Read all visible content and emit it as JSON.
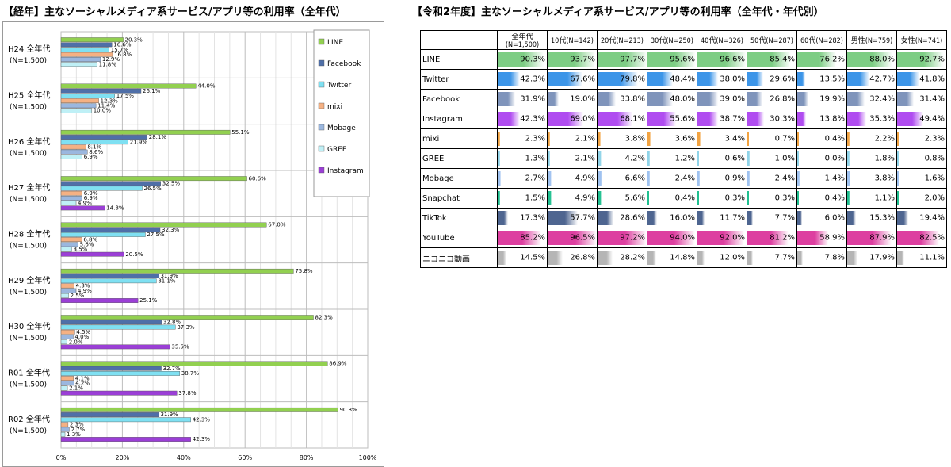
{
  "left_title": "【経年】主なソーシャルメディア系サービス/アプリ等の利用率（全年代）",
  "right_title": "【令和2年度】主なソーシャルメディア系サービス/アプリ等の利用率（全年代・年代別）",
  "chart_data": [
    {
      "type": "bar",
      "orientation": "horizontal",
      "title": "【経年】主なソーシャルメディア系サービス/アプリ等の利用率（全年代）",
      "categories": [
        {
          "line1": "H24 全年代",
          "line2": "(N=1,500)"
        },
        {
          "line1": "H25 全年代",
          "line2": "(N=1,500)"
        },
        {
          "line1": "H26 全年代",
          "line2": "(N=1,500)"
        },
        {
          "line1": "H27 全年代",
          "line2": "(N=1,500)"
        },
        {
          "line1": "H28 全年代",
          "line2": "(N=1,500)"
        },
        {
          "line1": "H29 全年代",
          "line2": "(N=1,500)"
        },
        {
          "line1": "H30 全年代",
          "line2": "(N=1,500)"
        },
        {
          "line1": "R01 全年代",
          "line2": "(N=1,500)"
        },
        {
          "line1": "R02 全年代",
          "line2": "(N=1,500)"
        }
      ],
      "series": [
        {
          "name": "LINE",
          "color": "#92d050",
          "values": [
            20.3,
            44.0,
            55.1,
            60.6,
            67.0,
            75.8,
            82.3,
            86.9,
            90.3
          ]
        },
        {
          "name": "Facebook",
          "color": "#4f6fa8",
          "values": [
            16.6,
            26.1,
            28.1,
            32.5,
            32.3,
            31.9,
            32.8,
            32.7,
            31.9
          ]
        },
        {
          "name": "Twitter",
          "color": "#7fe0f2",
          "values": [
            15.7,
            17.5,
            21.9,
            26.5,
            27.5,
            31.1,
            37.3,
            38.7,
            42.3
          ]
        },
        {
          "name": "mixi",
          "color": "#f5b183",
          "values": [
            16.8,
            12.3,
            8.1,
            6.9,
            6.8,
            4.3,
            4.5,
            4.1,
            2.3
          ]
        },
        {
          "name": "Mobage",
          "color": "#9bb7df",
          "values": [
            12.9,
            11.4,
            8.6,
            6.9,
            5.6,
            4.9,
            4.0,
            4.2,
            2.7
          ]
        },
        {
          "name": "GREE",
          "color": "#bff0f6",
          "values": [
            11.8,
            10.0,
            6.9,
            4.9,
            3.5,
            2.5,
            2.0,
            2.1,
            1.3
          ]
        },
        {
          "name": "Instagram",
          "color": "#9b3fd6",
          "values": [
            null,
            null,
            null,
            14.3,
            20.5,
            25.1,
            35.5,
            37.8,
            42.3
          ]
        }
      ],
      "value_labels": [
        [
          "20.3%",
          "44.0%",
          "55.1%",
          "60.6%",
          "67.0%",
          "75.8%",
          "82.3%",
          "86.9%",
          "90.3%"
        ],
        [
          "16.6%",
          "26.1%",
          "28.1%",
          "32.5%",
          "32.3%",
          "31.9%",
          "32.8%",
          "32.7%",
          "31.9%"
        ],
        [
          "15.7%",
          "17.5%",
          "21.9%",
          "26.5%",
          "27.5%",
          "31.1%",
          "37.3%",
          "38.7%",
          "42.3%"
        ],
        [
          "16.8%",
          "12.3%",
          "8.1%",
          "6.9%",
          "6.8%",
          "4.3%",
          "4.5%",
          "4.1%",
          "2.3%"
        ],
        [
          "12.9%",
          "11.4%",
          "8.6%",
          "6.9%",
          "5.6%",
          "4.9%",
          "4.0%",
          "4.2%",
          "2.7%"
        ],
        [
          "11.8%",
          "10.0%",
          "6.9%",
          "4.9%",
          "3.5%",
          "2.5%",
          "2.0%",
          "2.1%",
          "1.3%"
        ],
        [
          null,
          null,
          null,
          "14.3%",
          "20.5%",
          "25.1%",
          "35.5%",
          "37.8%",
          "42.3%"
        ]
      ],
      "xlim": [
        0,
        100
      ],
      "x_ticks": [
        "0%",
        "20%",
        "40%",
        "60%",
        "80%",
        "100%"
      ],
      "grid": true,
      "legend_placement": "top-right"
    },
    {
      "type": "table",
      "title": "【令和2年度】主なソーシャルメディア系サービス/アプリ等の利用率（全年代・年代別）",
      "columns": [
        "全年代(N=1,500)",
        "10代(N=142)",
        "20代(N=213)",
        "30代(N=250)",
        "40代(N=326)",
        "50代(N=287)",
        "60代(N=282)",
        "男性(N=759)",
        "女性(N=741)"
      ],
      "rows": [
        {
          "label": "LINE",
          "color": "#7dcd84",
          "values": [
            90.3,
            93.7,
            97.7,
            95.6,
            96.6,
            85.4,
            76.2,
            88.0,
            92.7
          ],
          "labels": [
            "90.3%",
            "93.7%",
            "97.7%",
            "95.6%",
            "96.6%",
            "85.4%",
            "76.2%",
            "88.0%",
            "92.7%"
          ]
        },
        {
          "label": "Twitter",
          "color": "#3c95e8",
          "values": [
            42.3,
            67.6,
            79.8,
            48.4,
            38.0,
            29.6,
            13.5,
            42.7,
            41.8
          ],
          "labels": [
            "42.3%",
            "67.6%",
            "79.8%",
            "48.4%",
            "38.0%",
            "29.6%",
            "13.5%",
            "42.7%",
            "41.8%"
          ]
        },
        {
          "label": "Facebook",
          "color": "#7f94bb",
          "values": [
            31.9,
            19.0,
            33.8,
            48.0,
            39.0,
            26.8,
            19.9,
            32.4,
            31.4
          ],
          "labels": [
            "31.9%",
            "19.0%",
            "33.8%",
            "48.0%",
            "39.0%",
            "26.8%",
            "19.9%",
            "32.4%",
            "31.4%"
          ]
        },
        {
          "label": "Instagram",
          "color": "#b04cf0",
          "values": [
            42.3,
            69.0,
            68.1,
            55.6,
            38.7,
            30.3,
            13.8,
            35.3,
            49.4
          ],
          "labels": [
            "42.3%",
            "69.0%",
            "68.1%",
            "55.6%",
            "38.7%",
            "30.3%",
            "13.8%",
            "35.3%",
            "49.4%"
          ]
        },
        {
          "label": "mixi",
          "color": "#f2a341",
          "values": [
            2.3,
            2.1,
            3.8,
            3.6,
            3.4,
            0.7,
            0.4,
            2.2,
            2.3
          ],
          "labels": [
            "2.3%",
            "2.1%",
            "3.8%",
            "3.6%",
            "3.4%",
            "0.7%",
            "0.4%",
            "2.2%",
            "2.3%"
          ]
        },
        {
          "label": "GREE",
          "color": "#8fd3e8",
          "values": [
            1.3,
            2.1,
            4.2,
            1.2,
            0.6,
            1.0,
            0.0,
            1.8,
            0.8
          ],
          "labels": [
            "1.3%",
            "2.1%",
            "4.2%",
            "1.2%",
            "0.6%",
            "1.0%",
            "0.0%",
            "1.8%",
            "0.8%"
          ]
        },
        {
          "label": "Mobage",
          "color": "#9fc2f0",
          "values": [
            2.7,
            4.9,
            6.6,
            2.4,
            0.9,
            2.4,
            1.4,
            3.8,
            1.6
          ],
          "labels": [
            "2.7%",
            "4.9%",
            "6.6%",
            "2.4%",
            "0.9%",
            "2.4%",
            "1.4%",
            "3.8%",
            "1.6%"
          ]
        },
        {
          "label": "Snapchat",
          "color": "#1fbf8f",
          "values": [
            1.5,
            4.9,
            5.6,
            0.4,
            0.3,
            0.3,
            0.4,
            1.1,
            2.0
          ],
          "labels": [
            "1.5%",
            "4.9%",
            "5.6%",
            "0.4%",
            "0.3%",
            "0.3%",
            "0.4%",
            "1.1%",
            "2.0%"
          ]
        },
        {
          "label": "TikTok",
          "color": "#4e6590",
          "values": [
            17.3,
            57.7,
            28.6,
            16.0,
            11.7,
            7.7,
            6.0,
            15.3,
            19.4
          ],
          "labels": [
            "17.3%",
            "57.7%",
            "28.6%",
            "16.0%",
            "11.7%",
            "7.7%",
            "6.0%",
            "15.3%",
            "19.4%"
          ]
        },
        {
          "label": "YouTube",
          "color": "#dd3fa0",
          "values": [
            85.2,
            96.5,
            97.2,
            94.0,
            92.0,
            81.2,
            58.9,
            87.9,
            82.5
          ],
          "labels": [
            "85.2%",
            "96.5%",
            "97.2%",
            "94.0%",
            "92.0%",
            "81.2%",
            "58.9%",
            "87.9%",
            "82.5%"
          ]
        },
        {
          "label": "ニコニコ動画",
          "color": "#b5b5b5",
          "values": [
            14.5,
            26.8,
            28.2,
            14.8,
            12.0,
            7.7,
            7.8,
            17.9,
            11.1
          ],
          "labels": [
            "14.5%",
            "26.8%",
            "28.2%",
            "14.8%",
            "12.0%",
            "7.7%",
            "7.8%",
            "17.9%",
            "11.1%"
          ]
        }
      ]
    }
  ]
}
